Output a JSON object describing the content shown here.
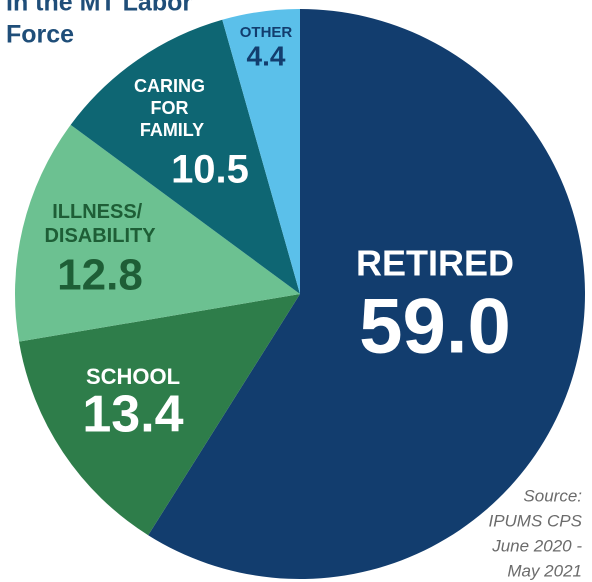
{
  "chart_data": {
    "type": "pie",
    "title": [
      "In the MT Labor",
      "Force"
    ],
    "categories": [
      "RETIRED",
      "SCHOOL",
      "ILLNESS/ DISABILITY",
      "CARING FOR FAMILY",
      "OTHER"
    ],
    "values": [
      59.0,
      13.4,
      12.8,
      10.5,
      4.4
    ],
    "value_labels": [
      "59.0",
      "13.4",
      "12.8",
      "10.5",
      "4.4"
    ],
    "colors": [
      "#123d6e",
      "#2e7d4a",
      "#6cc191",
      "#0e6673",
      "#5bc0ea"
    ],
    "source": [
      "Source:",
      "IPUMS CPS",
      "June 2020 -",
      "May 2021"
    ]
  }
}
